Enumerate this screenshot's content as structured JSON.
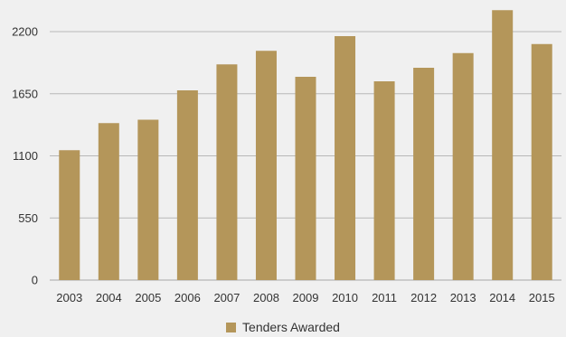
{
  "chart_data": {
    "type": "bar",
    "categories": [
      "2003",
      "2004",
      "2005",
      "2006",
      "2007",
      "2008",
      "2009",
      "2010",
      "2011",
      "2012",
      "2013",
      "2014",
      "2015"
    ],
    "series": [
      {
        "name": "Tenders Awarded",
        "values": [
          1150,
          1390,
          1420,
          1680,
          1910,
          2030,
          1800,
          2160,
          1760,
          1880,
          2010,
          2390,
          2090
        ]
      }
    ],
    "ylim": [
      0,
      2200
    ],
    "yticks": [
      0,
      550,
      1100,
      1650,
      2200
    ],
    "grid": true,
    "legend_position": "bottom-center",
    "title": "",
    "xlabel": "",
    "ylabel": ""
  },
  "colors": {
    "bar": "#b4965a",
    "grid": "#b7b7b7",
    "background": "#f0f0f0"
  }
}
